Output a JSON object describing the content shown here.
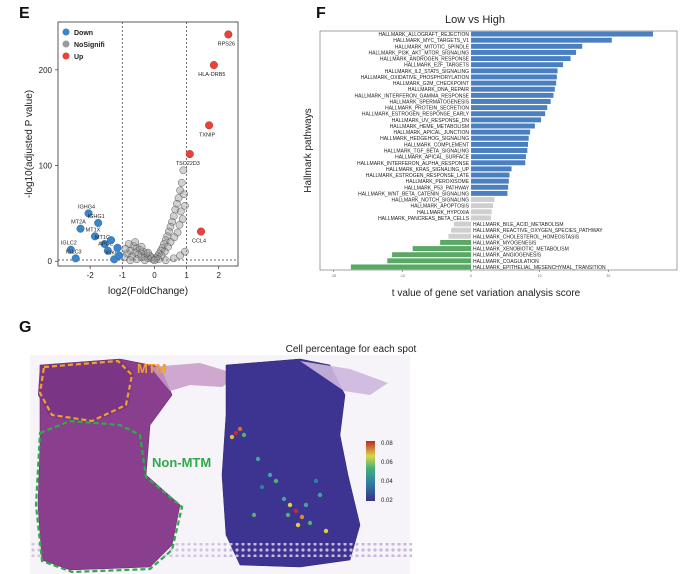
{
  "panels": {
    "e_letter": "E",
    "f_letter": "F",
    "g_letter": "G"
  },
  "chart_data": [
    {
      "type": "scatter",
      "panel": "E",
      "title": "",
      "xlabel": "log2(FoldChange)",
      "ylabel": "-log10(adjusted P value)",
      "xlim": [
        -3,
        2.6
      ],
      "ylim": [
        -5,
        250
      ],
      "xticks": [
        -2,
        -1,
        0,
        1,
        2
      ],
      "yticks": [
        0,
        100,
        200
      ],
      "thresholds": {
        "x": [
          -1,
          1
        ],
        "y": 1.3
      },
      "legend_position": "top-left",
      "legend": [
        {
          "label": "Down",
          "color": "#3a86c8"
        },
        {
          "label": "NoSignifi",
          "color": "#9a9a9a"
        },
        {
          "label": "Up",
          "color": "#e8423a"
        }
      ],
      "points_up": [
        {
          "x": 2.3,
          "y": 237,
          "label": "RPS26"
        },
        {
          "x": 1.85,
          "y": 205,
          "label": "HLA-DRB5"
        },
        {
          "x": 1.7,
          "y": 142,
          "label": "TXNIP"
        },
        {
          "x": 1.1,
          "y": 112,
          "label": "TSC22D3"
        },
        {
          "x": 1.45,
          "y": 31,
          "label": "CCL4"
        }
      ],
      "points_down": [
        {
          "x": -2.05,
          "y": 50,
          "label": "IGHG4"
        },
        {
          "x": -2.3,
          "y": 34,
          "label": "MT2A"
        },
        {
          "x": -1.75,
          "y": 40,
          "label": "IGHG1"
        },
        {
          "x": -1.85,
          "y": 26,
          "label": "MT1X"
        },
        {
          "x": -2.6,
          "y": 12,
          "label": "IGLC2"
        },
        {
          "x": -2.45,
          "y": 3,
          "label": "IGLC3"
        },
        {
          "x": -1.55,
          "y": 18,
          "label": "MT1G"
        },
        {
          "x": -1.45,
          "y": 11,
          "label": "APOE"
        },
        {
          "x": -1.25,
          "y": 2,
          "label": "IGKC"
        },
        {
          "x": -1.15,
          "y": 14,
          "label": ""
        },
        {
          "x": -1.35,
          "y": 22,
          "label": ""
        },
        {
          "x": -1.1,
          "y": 6,
          "label": ""
        }
      ],
      "points_ns": [
        {
          "x": 0.9,
          "y": 95
        },
        {
          "x": 0.85,
          "y": 82
        },
        {
          "x": 0.8,
          "y": 74
        },
        {
          "x": 0.75,
          "y": 66
        },
        {
          "x": 0.7,
          "y": 60
        },
        {
          "x": 0.65,
          "y": 54
        },
        {
          "x": 0.6,
          "y": 47
        },
        {
          "x": 0.55,
          "y": 41
        },
        {
          "x": 0.5,
          "y": 36
        },
        {
          "x": 0.45,
          "y": 31
        },
        {
          "x": 0.4,
          "y": 26
        },
        {
          "x": 0.35,
          "y": 22
        },
        {
          "x": 0.3,
          "y": 18
        },
        {
          "x": 0.25,
          "y": 14
        },
        {
          "x": 0.2,
          "y": 11
        },
        {
          "x": 0.15,
          "y": 8
        },
        {
          "x": 0.1,
          "y": 5
        },
        {
          "x": 0.05,
          "y": 3
        },
        {
          "x": 0.95,
          "y": 58
        },
        {
          "x": 0.88,
          "y": 44
        },
        {
          "x": 0.78,
          "y": 38
        },
        {
          "x": 0.72,
          "y": 30
        },
        {
          "x": 0.62,
          "y": 25
        },
        {
          "x": 0.92,
          "y": 70
        },
        {
          "x": 0.5,
          "y": 20
        },
        {
          "x": 0.42,
          "y": 15
        },
        {
          "x": 0.32,
          "y": 10
        },
        {
          "x": 0.22,
          "y": 6
        },
        {
          "x": 0.12,
          "y": 2
        },
        {
          "x": 0.82,
          "y": 52
        },
        {
          "x": -0.05,
          "y": 2
        },
        {
          "x": -0.1,
          "y": 4
        },
        {
          "x": -0.15,
          "y": 6
        },
        {
          "x": -0.2,
          "y": 3
        },
        {
          "x": -0.25,
          "y": 8
        },
        {
          "x": -0.3,
          "y": 5
        },
        {
          "x": -0.35,
          "y": 10
        },
        {
          "x": -0.4,
          "y": 4
        },
        {
          "x": -0.45,
          "y": 12
        },
        {
          "x": -0.5,
          "y": 7
        },
        {
          "x": -0.55,
          "y": 14
        },
        {
          "x": -0.6,
          "y": 9
        },
        {
          "x": -0.65,
          "y": 16
        },
        {
          "x": -0.7,
          "y": 5
        },
        {
          "x": -0.75,
          "y": 11
        },
        {
          "x": -0.8,
          "y": 18
        },
        {
          "x": -0.85,
          "y": 8
        },
        {
          "x": -0.9,
          "y": 13
        },
        {
          "x": -0.95,
          "y": 4
        },
        {
          "x": -0.6,
          "y": 20
        },
        {
          "x": -0.4,
          "y": 15
        },
        {
          "x": -0.2,
          "y": 9
        },
        {
          "x": 0.0,
          "y": 1
        },
        {
          "x": -0.3,
          "y": 1
        },
        {
          "x": -0.55,
          "y": 2
        },
        {
          "x": -0.75,
          "y": 1
        },
        {
          "x": 0.35,
          "y": 1
        },
        {
          "x": 0.6,
          "y": 3
        },
        {
          "x": 0.8,
          "y": 6
        },
        {
          "x": 0.95,
          "y": 10
        }
      ]
    },
    {
      "type": "bar",
      "panel": "F",
      "orientation": "horizontal",
      "title": "Low vs High",
      "xlabel": "t value of gene set variation analysis score",
      "ylabel": "Hallmark pathways",
      "xlim": [
        -22,
        30
      ],
      "xticks": [
        -20,
        -10,
        0,
        10,
        20
      ],
      "colors": {
        "positive": "#4a7fc0",
        "nonsignificant": "#cfcfcf",
        "negative": "#5aa865"
      },
      "categories": [
        "HALLMARK_ALLOGRAFT_REJECTION",
        "HALLMARK_MYC_TARGETS_V1",
        "HALLMARK_MITOTIC_SPINDLE",
        "HALLMARK_PI3K_AKT_MTOR_SIGNALING",
        "HALLMARK_ANDROGEN_RESPONSE",
        "HALLMARK_E2F_TARGETS",
        "HALLMARK_IL2_STAT5_SIGNALING",
        "HALLMARK_OXIDATIVE_PHOSPHORYLATION",
        "HALLMARK_G2M_CHECKPOINT",
        "HALLMARK_DNA_REPAIR",
        "HALLMARK_INTERFERON_GAMMA_RESPONSE",
        "HALLMARK_SPERMATOGENESIS",
        "HALLMARK_PROTEIN_SECRETION",
        "HALLMARK_ESTROGEN_RESPONSE_EARLY",
        "HALLMARK_UV_RESPONSE_DN",
        "HALLMARK_HEME_METABOLISM",
        "HALLMARK_APICAL_JUNCTION",
        "HALLMARK_HEDGEHOG_SIGNALING",
        "HALLMARK_COMPLEMENT",
        "HALLMARK_TGF_BETA_SIGNALING",
        "HALLMARK_APICAL_SURFACE",
        "HALLMARK_INTERFERON_ALPHA_RESPONSE",
        "HALLMARK_KRAS_SIGNALING_UP",
        "HALLMARK_ESTROGEN_RESPONSE_LATE",
        "HALLMARK_PEROXISOME",
        "HALLMARK_P53_PATHWAY",
        "HALLMARK_WNT_BETA_CATENIN_SIGNALING",
        "HALLMARK_NOTCH_SIGNALING",
        "HALLMARK_APOPTOSIS",
        "HALLMARK_HYPOXIA",
        "HALLMARK_PANCREAS_BETA_CELLS",
        "HALLMARK_BILE_ACID_METABOLISM",
        "HALLMARK_REACTIVE_OXYGEN_SPECIES_PATHWAY",
        "HALLMARK_CHOLESTEROL_HOMEOSTASIS",
        "HALLMARK_MYOGENESIS",
        "HALLMARK_XENOBIOTIC_METABOLISM",
        "HALLMARK_ANGIOGENESIS",
        "HALLMARK_COAGULATION",
        "HALLMARK_EPITHELIAL_MESENCHYMAL_TRANSITION"
      ],
      "values": [
        26.5,
        20.5,
        16.2,
        15.3,
        14.5,
        13.4,
        12.6,
        12.5,
        12.4,
        12.2,
        12.0,
        11.6,
        11.1,
        10.8,
        10.2,
        9.3,
        8.6,
        8.4,
        8.3,
        8.2,
        8.0,
        7.9,
        5.9,
        5.6,
        5.5,
        5.4,
        5.3,
        3.4,
        3.2,
        3.0,
        2.9,
        -2.5,
        -2.9,
        -3.3,
        -4.5,
        -8.5,
        -11.5,
        -12.2,
        -17.5
      ],
      "categories_significant": [
        true,
        true,
        true,
        true,
        true,
        true,
        true,
        true,
        true,
        true,
        true,
        true,
        true,
        true,
        true,
        true,
        true,
        true,
        true,
        true,
        true,
        true,
        true,
        true,
        true,
        true,
        true,
        false,
        false,
        false,
        false,
        false,
        false,
        false,
        true,
        true,
        true,
        true,
        true
      ]
    },
    {
      "type": "heatmap",
      "panel": "G",
      "title": "Cell percentage for each spot",
      "colorbar_ticks": [
        "0.08",
        "0.06",
        "0.04",
        "0.02"
      ],
      "colorbar_range": [
        0.015,
        0.085
      ],
      "region_labels": [
        {
          "text": "MTM",
          "color": "#f0a030"
        },
        {
          "text": "Non-MTM",
          "color": "#2faa4a"
        }
      ]
    }
  ]
}
